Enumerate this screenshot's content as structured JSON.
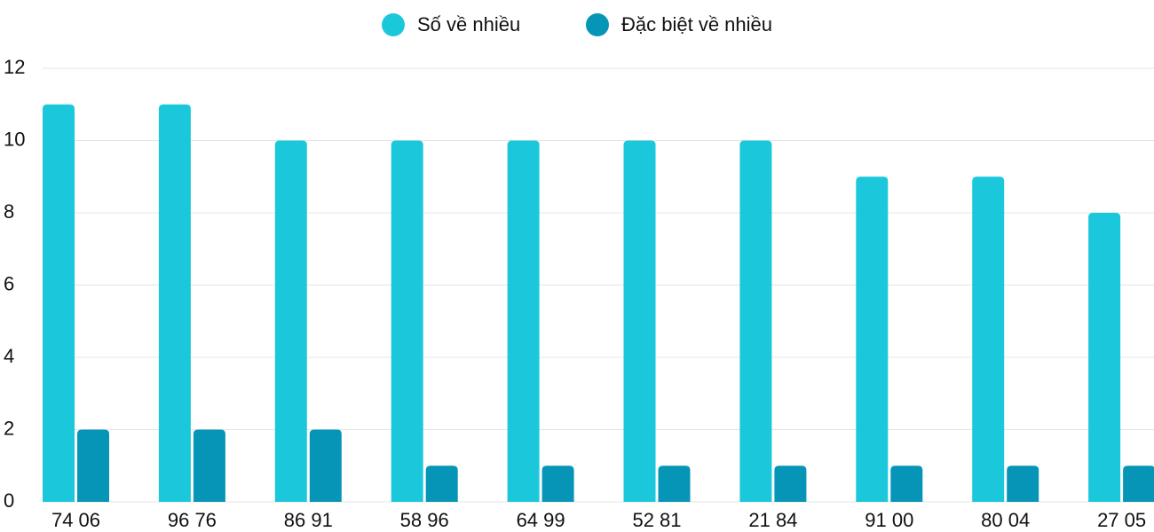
{
  "chart_data": {
    "type": "bar",
    "categories": [
      "74 06",
      "96 76",
      "86 91",
      "58 96",
      "64 99",
      "52 81",
      "21 84",
      "91 00",
      "80 04",
      "27 05"
    ],
    "series": [
      {
        "name": "Số về nhiều",
        "color": "#1bc8db",
        "values": [
          11,
          11,
          10,
          10,
          10,
          10,
          10,
          9,
          9,
          8
        ]
      },
      {
        "name": "Đặc biệt về nhiều",
        "color": "#0795b7",
        "values": [
          2,
          2,
          2,
          1,
          1,
          1,
          1,
          1,
          1,
          1
        ]
      }
    ],
    "ylim": [
      0,
      12
    ],
    "yticks": [
      0,
      2,
      4,
      6,
      8,
      10,
      12
    ],
    "grid": true,
    "legend": "top"
  }
}
